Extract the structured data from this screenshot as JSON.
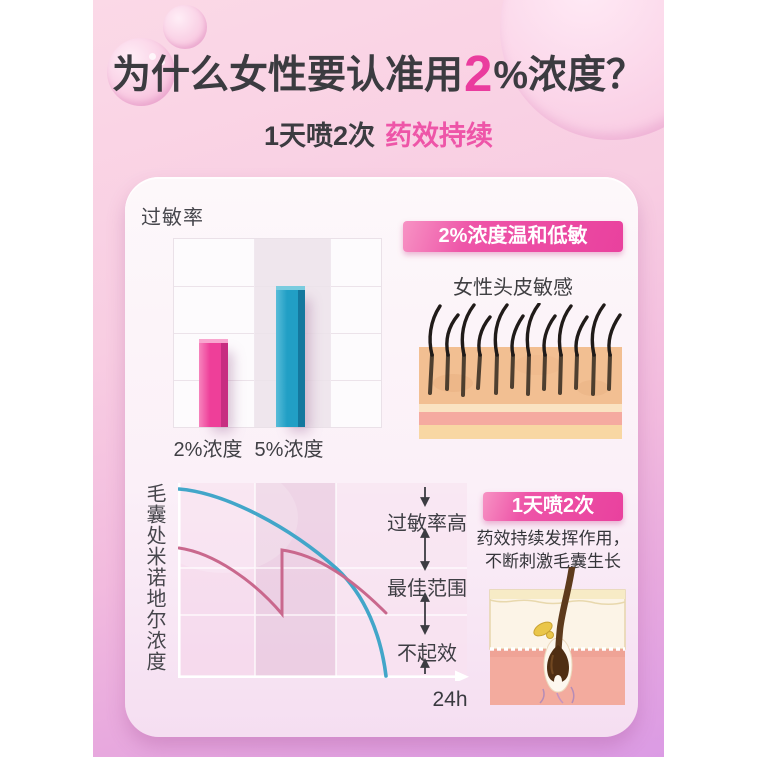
{
  "page": {
    "title": {
      "prefix": "为什么女性要认准用",
      "highlight": "2",
      "suffix": "%浓度？"
    },
    "subtitle": {
      "plain": "1天喷2次",
      "accent": "药效持续"
    }
  },
  "card": {
    "bar_badge": "2%浓度温和低敏",
    "bar_caption": "女性头皮敏感",
    "line_badge": "1天喷2次",
    "line_desc_line1": "药效持续发挥作用，",
    "line_desc_line2": "不断刺激毛囊生长"
  },
  "colors": {
    "accent_pink": "#ea3c9e",
    "bar_2pct": "#ee3f99",
    "bar_5pct": "#219fc5",
    "curve_blue": "#42a6c9",
    "curve_pink": "#c9688d",
    "badge_gradient_start": "#f793c4",
    "badge_gradient_end": "#e9419e"
  },
  "chart_data": [
    {
      "type": "bar",
      "title": "过敏率",
      "ylabel": "过敏率",
      "categories": [
        "2%浓度",
        "5%浓度"
      ],
      "values": [
        47,
        75
      ],
      "value_unit": "percent of plot height (axis unlabeled)",
      "colors": [
        "#ee3f99",
        "#219fc5"
      ],
      "highlighted_category": "5%浓度",
      "grid": true
    },
    {
      "type": "line",
      "ylabel": "毛囊处米诺地尔浓度",
      "x_end_label": "24h",
      "zones": [
        {
          "label": "过敏率高"
        },
        {
          "label": "最佳范围"
        },
        {
          "label": "不起效"
        }
      ],
      "zone_boundaries_pct_from_bottom": [
        56,
        32
      ],
      "series": [
        {
          "name": "blue_curve",
          "color": "#42a6c9",
          "points_pct": [
            [
              0,
              97
            ],
            [
              27,
              85
            ],
            [
              55,
              56
            ],
            [
              64,
              43
            ],
            [
              72,
              1
            ]
          ]
        },
        {
          "name": "pink_curve",
          "color": "#c9688d",
          "points_pct": [
            [
              0,
              67
            ],
            [
              20,
              55
            ],
            [
              36,
              33
            ],
            [
              36,
              66
            ],
            [
              50,
              57
            ],
            [
              72,
              33
            ]
          ],
          "note": "vertical rise at x=36% depicts re-spray"
        }
      ],
      "grid": true
    }
  ]
}
